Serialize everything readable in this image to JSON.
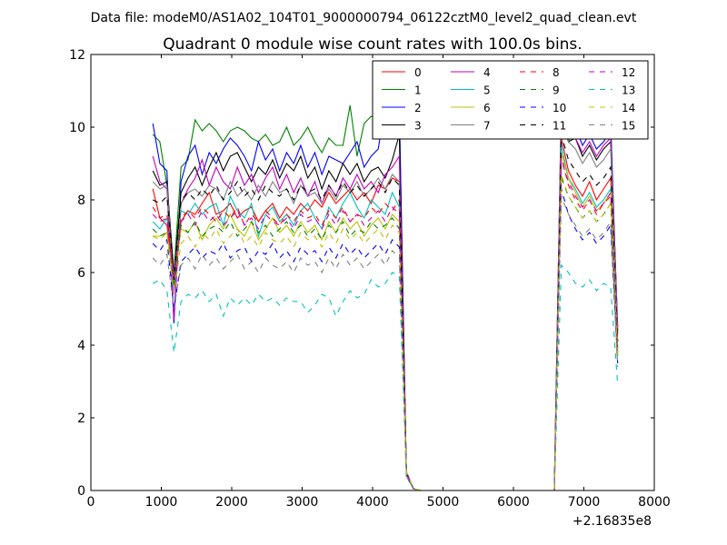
{
  "chart_data": {
    "type": "line",
    "suptitle": "Data file: modeM0/AS1A02_104T01_9000000794_06122cztM0_level2_quad_clean.evt",
    "title": "Quadrant 0 module wise count rates with 100.0s bins.",
    "xlabel": "",
    "ylabel": "",
    "xlim": [
      0,
      8000
    ],
    "ylim": [
      0,
      12
    ],
    "x_offset_label": "+2.16835e8",
    "xticks": [
      "0",
      "1000",
      "2000",
      "3000",
      "4000",
      "5000",
      "6000",
      "7000",
      "8000"
    ],
    "yticks": [
      "0",
      "2",
      "4",
      "6",
      "8",
      "10",
      "12"
    ],
    "grid": false,
    "legend_position": "top-right",
    "legend_columns": 4,
    "x": [
      880,
      980,
      1080,
      1180,
      1280,
      1380,
      1480,
      1580,
      1680,
      1780,
      1880,
      1980,
      2080,
      2180,
      2280,
      2380,
      2480,
      2580,
      2680,
      2780,
      2880,
      2980,
      3080,
      3180,
      3280,
      3380,
      3480,
      3580,
      3680,
      3780,
      3880,
      3980,
      4080,
      4180,
      4280,
      4380,
      4480,
      4580,
      4680,
      4780,
      4880,
      4980,
      5080,
      5180,
      5280,
      5380,
      5480,
      5580,
      5680,
      5780,
      5880,
      5980,
      6080,
      6180,
      6280,
      6380,
      6480,
      6580,
      6680,
      6780,
      6880,
      6980,
      7080,
      7180,
      7280,
      7380,
      7480
    ],
    "series": [
      {
        "name": "0",
        "color": "#ff0000",
        "style": "solid",
        "values": [
          8.3,
          7.5,
          7.3,
          5.8,
          7.4,
          7.7,
          7.6,
          7.9,
          8.2,
          7.6,
          7.7,
          7.9,
          7.5,
          7.7,
          7.8,
          7.4,
          7.7,
          7.9,
          7.5,
          7.8,
          7.6,
          7.9,
          7.7,
          8.0,
          7.8,
          8.2,
          7.9,
          8.1,
          8.3,
          8.0,
          8.2,
          7.9,
          8.4,
          8.3,
          8.6,
          8.5,
          0.5,
          0.05,
          0,
          0,
          0,
          0,
          0,
          0,
          0,
          0,
          0,
          0,
          0,
          0,
          0,
          0,
          0,
          0,
          0,
          0,
          0,
          0,
          9.7,
          8.8,
          8.4,
          8.1,
          8.5,
          8.0,
          8.3,
          8.6,
          4.1
        ]
      },
      {
        "name": "1",
        "color": "#008000",
        "style": "solid",
        "values": [
          9.8,
          9.6,
          8.4,
          6.0,
          8.9,
          9.1,
          10.2,
          9.9,
          10.1,
          9.9,
          9.6,
          9.9,
          10.0,
          9.9,
          9.7,
          9.6,
          9.8,
          9.5,
          9.6,
          10.0,
          9.5,
          9.7,
          10.0,
          9.6,
          9.3,
          9.7,
          9.5,
          9.5,
          10.6,
          9.2,
          10.1,
          10.3,
          10.2,
          10.4,
          10.2,
          10.5,
          0.5,
          0.05,
          0,
          0,
          0,
          0,
          0,
          0,
          0,
          0,
          0,
          0,
          0,
          0,
          0,
          0,
          0,
          0,
          0,
          0,
          0,
          0,
          10.2,
          9.6,
          10.3,
          9.9,
          10.2,
          9.9,
          10.0,
          10.2,
          4.3
        ]
      },
      {
        "name": "2",
        "color": "#0000ff",
        "style": "solid",
        "values": [
          10.1,
          9.0,
          8.8,
          4.6,
          8.5,
          9.2,
          9.5,
          8.7,
          9.3,
          9.0,
          9.4,
          9.7,
          9.5,
          9.2,
          8.8,
          9.6,
          9.1,
          9.4,
          8.8,
          9.3,
          9.0,
          9.5,
          8.9,
          9.3,
          8.7,
          9.2,
          9.1,
          9.0,
          9.3,
          9.6,
          8.9,
          9.2,
          9.4,
          10.6,
          10.4,
          10.5,
          0.4,
          0.05,
          0,
          0,
          0,
          0,
          0,
          0,
          0,
          0,
          0,
          0,
          0,
          0,
          0,
          0,
          0,
          0,
          0,
          0,
          0,
          0,
          10.8,
          9.8,
          10.0,
          9.5,
          9.8,
          9.4,
          9.6,
          9.9,
          4.5
        ]
      },
      {
        "name": "3",
        "color": "#000000",
        "style": "solid",
        "values": [
          8.8,
          8.4,
          8.5,
          5.9,
          8.2,
          8.6,
          8.9,
          8.4,
          8.9,
          9.3,
          8.8,
          9.2,
          9.3,
          8.9,
          8.5,
          8.9,
          8.7,
          9.1,
          8.6,
          9.0,
          8.8,
          9.2,
          8.6,
          8.9,
          8.3,
          8.8,
          8.5,
          9.0,
          8.7,
          9.0,
          8.5,
          8.8,
          8.9,
          8.6,
          9.1,
          9.8,
          0.5,
          0.05,
          0,
          0,
          0,
          0,
          0,
          0,
          0,
          0,
          0,
          0,
          0,
          0,
          0,
          0,
          0,
          0,
          0,
          0,
          0,
          0,
          10.2,
          9.6,
          9.7,
          9.2,
          9.5,
          9.1,
          9.4,
          9.6,
          4.4
        ]
      },
      {
        "name": "4",
        "color": "#bf00bf",
        "style": "solid",
        "values": [
          9.2,
          8.5,
          8.3,
          4.7,
          7.9,
          8.3,
          8.6,
          9.1,
          8.4,
          8.9,
          8.5,
          8.3,
          8.9,
          8.4,
          8.7,
          8.2,
          8.6,
          8.9,
          8.3,
          8.7,
          8.2,
          8.6,
          8.1,
          8.5,
          7.9,
          8.4,
          8.1,
          8.6,
          8.3,
          8.7,
          8.3,
          8.5,
          8.2,
          8.7,
          8.9,
          9.2,
          0.5,
          0.05,
          0,
          0,
          0,
          0,
          0,
          0,
          0,
          0,
          0,
          0,
          0,
          0,
          0,
          0,
          0,
          0,
          0,
          0,
          0,
          0,
          10.5,
          10.0,
          9.7,
          9.3,
          9.6,
          9.2,
          9.5,
          9.7,
          4.5
        ]
      },
      {
        "name": "5",
        "color": "#00bfbf",
        "style": "solid",
        "values": [
          7.4,
          7.2,
          7.5,
          5.9,
          7.7,
          7.6,
          7.9,
          7.6,
          7.8,
          7.9,
          7.3,
          8.1,
          7.7,
          7.5,
          7.9,
          7.0,
          7.6,
          7.8,
          7.4,
          7.6,
          7.3,
          7.7,
          7.9,
          7.5,
          7.2,
          7.8,
          7.5,
          7.9,
          8.2,
          7.8,
          7.5,
          8.0,
          7.8,
          7.6,
          8.2,
          7.8,
          0.5,
          0.05,
          0,
          0,
          0,
          0,
          0,
          0,
          0,
          0,
          0,
          0,
          0,
          0,
          0,
          0,
          0,
          0,
          0,
          0,
          0,
          0,
          9.5,
          8.6,
          8.3,
          7.9,
          8.2,
          7.8,
          8.0,
          8.3,
          3.9
        ]
      },
      {
        "name": "6",
        "color": "#bfbf00",
        "style": "solid",
        "values": [
          7.0,
          7.0,
          7.1,
          5.7,
          7.2,
          7.1,
          7.4,
          6.9,
          7.3,
          7.5,
          7.2,
          7.6,
          7.2,
          7.0,
          7.4,
          6.9,
          7.2,
          7.5,
          7.1,
          7.3,
          7.0,
          7.4,
          7.1,
          7.3,
          6.9,
          7.4,
          7.1,
          7.5,
          7.2,
          7.4,
          7.0,
          7.3,
          7.5,
          7.2,
          7.6,
          7.4,
          0.5,
          0.05,
          0,
          0,
          0,
          0,
          0,
          0,
          0,
          0,
          0,
          0,
          0,
          0,
          0,
          0,
          0,
          0,
          0,
          0,
          0,
          0,
          9.3,
          8.6,
          8.2,
          7.8,
          8.1,
          7.7,
          7.9,
          8.2,
          3.8
        ]
      },
      {
        "name": "7",
        "color": "#808080",
        "style": "solid",
        "values": [
          8.5,
          8.3,
          8.4,
          5.5,
          7.9,
          8.2,
          8.3,
          8.1,
          8.4,
          8.3,
          8.0,
          8.5,
          8.1,
          8.3,
          8.0,
          8.4,
          8.1,
          8.5,
          8.2,
          8.3,
          7.9,
          8.4,
          8.1,
          8.2,
          7.9,
          8.3,
          8.0,
          8.4,
          8.2,
          8.5,
          8.1,
          8.3,
          8.6,
          8.3,
          8.7,
          8.5,
          0.5,
          0.05,
          0,
          0,
          0,
          0,
          0,
          0,
          0,
          0,
          0,
          0,
          0,
          0,
          0,
          0,
          0,
          0,
          0,
          0,
          0,
          0,
          10.5,
          9.6,
          9.4,
          9.0,
          9.3,
          8.9,
          9.1,
          9.4,
          4.3
        ]
      },
      {
        "name": "8",
        "color": "#ff0000",
        "style": "dashed",
        "values": [
          7.8,
          7.5,
          7.6,
          5.8,
          7.5,
          7.7,
          7.5,
          7.8,
          7.6,
          7.4,
          7.7,
          7.5,
          7.8,
          7.3,
          7.6,
          7.4,
          7.7,
          7.5,
          7.3,
          7.6,
          7.4,
          7.7,
          7.5,
          7.6,
          7.3,
          7.7,
          7.5,
          7.8,
          7.4,
          7.6,
          7.5,
          7.8,
          7.6,
          7.9,
          7.7,
          8.0,
          0.5,
          0.05,
          0,
          0,
          0,
          0,
          0,
          0,
          0,
          0,
          0,
          0,
          0,
          0,
          0,
          0,
          0,
          0,
          0,
          0,
          0,
          0,
          9.2,
          8.4,
          8.0,
          7.7,
          8.0,
          7.6,
          7.9,
          8.1,
          3.9
        ]
      },
      {
        "name": "9",
        "color": "#008000",
        "style": "dashed",
        "values": [
          7.2,
          7.0,
          7.1,
          5.6,
          7.3,
          7.1,
          7.4,
          7.0,
          7.2,
          7.3,
          7.1,
          7.4,
          7.0,
          7.2,
          7.4,
          7.1,
          7.3,
          7.0,
          7.2,
          7.4,
          7.1,
          7.3,
          7.0,
          7.2,
          6.9,
          7.3,
          7.1,
          7.4,
          7.0,
          7.2,
          7.1,
          7.4,
          7.2,
          7.3,
          7.5,
          7.2,
          0.5,
          0.05,
          0,
          0,
          0,
          0,
          0,
          0,
          0,
          0,
          0,
          0,
          0,
          0,
          0,
          0,
          0,
          0,
          0,
          0,
          0,
          0,
          8.6,
          8.1,
          7.8,
          7.5,
          7.7,
          7.4,
          7.6,
          7.9,
          3.7
        ]
      },
      {
        "name": "10",
        "color": "#0000ff",
        "style": "dashed",
        "values": [
          6.8,
          6.6,
          6.9,
          5.0,
          6.3,
          6.5,
          6.7,
          6.4,
          6.6,
          6.5,
          6.8,
          6.4,
          6.6,
          6.7,
          6.3,
          6.6,
          6.5,
          6.8,
          6.4,
          6.6,
          6.3,
          6.7,
          6.5,
          6.6,
          6.3,
          6.7,
          6.4,
          6.8,
          6.5,
          6.7,
          6.4,
          6.6,
          6.8,
          6.5,
          6.9,
          6.7,
          0.4,
          0.05,
          0,
          0,
          0,
          0,
          0,
          0,
          0,
          0,
          0,
          0,
          0,
          0,
          0,
          0,
          0,
          0,
          0,
          0,
          0,
          0,
          8.3,
          7.6,
          7.2,
          6.9,
          7.1,
          6.8,
          7.0,
          7.3,
          3.5
        ]
      },
      {
        "name": "11",
        "color": "#000000",
        "style": "dashed",
        "values": [
          8.0,
          7.9,
          8.1,
          5.8,
          8.0,
          8.2,
          8.0,
          8.3,
          8.1,
          8.4,
          8.0,
          8.2,
          8.5,
          8.1,
          8.3,
          8.0,
          8.4,
          8.2,
          8.1,
          8.3,
          8.0,
          8.4,
          8.2,
          8.3,
          8.0,
          8.4,
          8.1,
          8.5,
          8.2,
          8.4,
          8.1,
          8.3,
          8.5,
          8.2,
          8.6,
          8.4,
          0.5,
          0.05,
          0,
          0,
          0,
          0,
          0,
          0,
          0,
          0,
          0,
          0,
          0,
          0,
          0,
          0,
          0,
          0,
          0,
          0,
          0,
          0,
          9.8,
          9.1,
          8.8,
          8.5,
          8.7,
          8.4,
          8.6,
          8.9,
          4.1
        ]
      },
      {
        "name": "12",
        "color": "#bf00bf",
        "style": "dashed",
        "values": [
          7.6,
          7.4,
          7.5,
          5.9,
          7.4,
          7.6,
          7.3,
          7.7,
          7.4,
          7.6,
          7.3,
          7.5,
          7.7,
          7.3,
          7.5,
          7.2,
          7.6,
          7.4,
          7.3,
          7.5,
          7.2,
          7.6,
          7.4,
          7.5,
          7.2,
          7.6,
          7.3,
          7.7,
          7.4,
          7.6,
          7.3,
          7.5,
          7.7,
          7.4,
          7.8,
          7.6,
          0.5,
          0.05,
          0,
          0,
          0,
          0,
          0,
          0,
          0,
          0,
          0,
          0,
          0,
          0,
          0,
          0,
          0,
          0,
          0,
          0,
          0,
          0,
          9.1,
          8.5,
          8.1,
          7.8,
          8.0,
          7.7,
          7.9,
          8.2,
          3.8
        ]
      },
      {
        "name": "13",
        "color": "#00bfbf",
        "style": "dashed",
        "values": [
          5.7,
          5.8,
          5.5,
          3.8,
          5.2,
          5.4,
          5.3,
          5.5,
          5.2,
          5.4,
          4.8,
          5.3,
          5.1,
          5.3,
          5.1,
          5.4,
          5.2,
          5.3,
          5.1,
          5.3,
          5.2,
          5.2,
          4.9,
          5.1,
          5.4,
          5.3,
          4.8,
          5.2,
          5.5,
          5.3,
          5.4,
          5.8,
          5.6,
          5.7,
          6.0,
          5.9,
          0.4,
          0.05,
          0,
          0,
          0,
          0,
          0,
          0,
          0,
          0,
          0,
          0,
          0,
          0,
          0,
          0,
          0,
          0,
          0,
          0,
          0,
          0,
          6.2,
          6.0,
          5.7,
          5.6,
          5.8,
          5.5,
          5.7,
          5.6,
          2.9
        ]
      },
      {
        "name": "14",
        "color": "#bfbf00",
        "style": "dashed",
        "values": [
          7.0,
          6.9,
          7.1,
          5.4,
          6.8,
          7.0,
          6.7,
          7.1,
          6.9,
          7.2,
          6.8,
          7.0,
          7.2,
          6.8,
          7.0,
          6.7,
          7.1,
          6.9,
          6.8,
          7.0,
          6.7,
          7.1,
          6.9,
          7.0,
          6.7,
          7.1,
          6.8,
          7.2,
          6.9,
          7.1,
          6.8,
          7.0,
          7.2,
          6.9,
          7.3,
          7.1,
          0.5,
          0.05,
          0,
          0,
          0,
          0,
          0,
          0,
          0,
          0,
          0,
          0,
          0,
          0,
          0,
          0,
          0,
          0,
          0,
          0,
          0,
          0,
          8.7,
          8.1,
          7.8,
          7.5,
          7.7,
          7.4,
          7.6,
          7.9,
          3.7
        ]
      },
      {
        "name": "15",
        "color": "#808080",
        "style": "dashed",
        "values": [
          6.4,
          6.2,
          6.5,
          5.0,
          6.2,
          6.4,
          6.1,
          6.5,
          6.2,
          6.4,
          6.1,
          6.3,
          6.5,
          6.1,
          6.3,
          6.0,
          6.4,
          6.2,
          6.1,
          6.3,
          6.0,
          6.4,
          6.2,
          6.3,
          6.0,
          6.4,
          6.1,
          6.5,
          6.2,
          6.4,
          6.1,
          6.3,
          6.5,
          6.2,
          6.6,
          6.4,
          0.4,
          0.05,
          0,
          0,
          0,
          0,
          0,
          0,
          0,
          0,
          0,
          0,
          0,
          0,
          0,
          0,
          0,
          0,
          0,
          0,
          0,
          0,
          8.1,
          7.6,
          7.3,
          7.0,
          7.2,
          6.9,
          7.1,
          7.4,
          3.4
        ]
      }
    ]
  }
}
